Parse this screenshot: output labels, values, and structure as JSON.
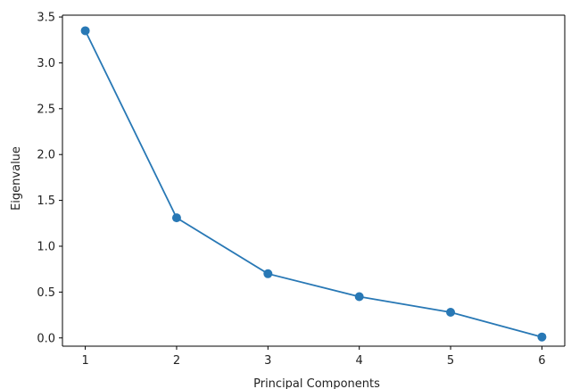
{
  "chart_data": {
    "type": "line",
    "title": "",
    "xlabel": "Principal Components",
    "ylabel": "Eigenvalue",
    "x": [
      1,
      2,
      3,
      4,
      5,
      6
    ],
    "series": [
      {
        "values": [
          3.35,
          1.31,
          0.7,
          0.45,
          0.28,
          0.01
        ]
      }
    ],
    "xlim": [
      0.75,
      6.25
    ],
    "ylim": [
      -0.09,
      3.52
    ],
    "xticks": [
      "1",
      "2",
      "3",
      "4",
      "5",
      "6"
    ],
    "yticks": [
      "0.0",
      "0.5",
      "1.0",
      "1.5",
      "2.0",
      "2.5",
      "3.0",
      "3.5"
    ],
    "grid": false,
    "line_color": "#2878b5",
    "marker": "circle"
  }
}
